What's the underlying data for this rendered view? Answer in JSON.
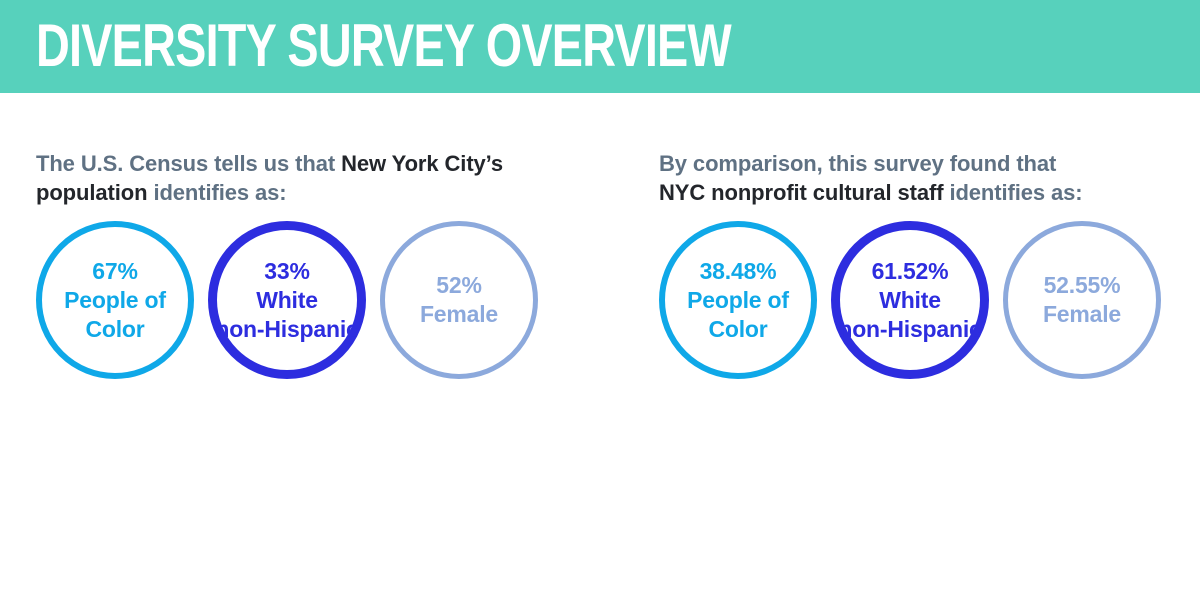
{
  "header": {
    "title": "DIVERSITY SURVEY OVERVIEW",
    "background": "#57D1BC",
    "text_color": "#FFFFFF"
  },
  "palette": {
    "slate_text": "#5F7183",
    "dark_text": "#23262B",
    "cyan": "#0FA8E8",
    "royal_blue": "#2D2DDF",
    "periwinkle": "#8CA9DC",
    "header_teal": "#57D1BC"
  },
  "left_panel": {
    "intro": {
      "line1_lead": "The U.S. Census tells us that ",
      "line1_emphasis": "New York City’s",
      "line2_emphasis": "population ",
      "line2_tail": "identifies as:"
    },
    "circles": [
      {
        "value": "67%",
        "label_line1": "People of",
        "label_line2": "Color",
        "color": "#0FA8E8"
      },
      {
        "value": "33%",
        "label_line1": "White",
        "label_line2": "non-Hispanic",
        "color": "#2D2DDF"
      },
      {
        "value": "52%",
        "label_line1": "Female",
        "label_line2": "",
        "color": "#8CA9DC"
      }
    ]
  },
  "right_panel": {
    "intro": {
      "line1_lead": "By comparison, this survey found that",
      "line1_emphasis": "",
      "line2_emphasis": "NYC nonprofit cultural staff ",
      "line2_tail": "identifies as:"
    },
    "circles": [
      {
        "value": "38.48%",
        "label_line1": "People of",
        "label_line2": "Color",
        "color": "#0FA8E8"
      },
      {
        "value": "61.52%",
        "label_line1": "White",
        "label_line2": "non-Hispanic",
        "color": "#2D2DDF"
      },
      {
        "value": "52.55%",
        "label_line1": "Female",
        "label_line2": "",
        "color": "#8CA9DC"
      }
    ]
  },
  "chart_data": {
    "type": "table",
    "title": "DIVERSITY SURVEY OVERVIEW",
    "categories": [
      "People of Color",
      "White non-Hispanic",
      "Female"
    ],
    "series": [
      {
        "name": "U.S. Census — New York City’s population",
        "values": [
          67,
          33,
          52
        ],
        "unit": "%"
      },
      {
        "name": "This survey — NYC nonprofit cultural staff",
        "values": [
          38.48,
          61.52,
          52.55
        ],
        "unit": "%"
      }
    ],
    "legend_position": "none",
    "notes": "Values shown inside outlined circles; cyan = People of Color, royal blue = White non-Hispanic, periwinkle = Female"
  }
}
